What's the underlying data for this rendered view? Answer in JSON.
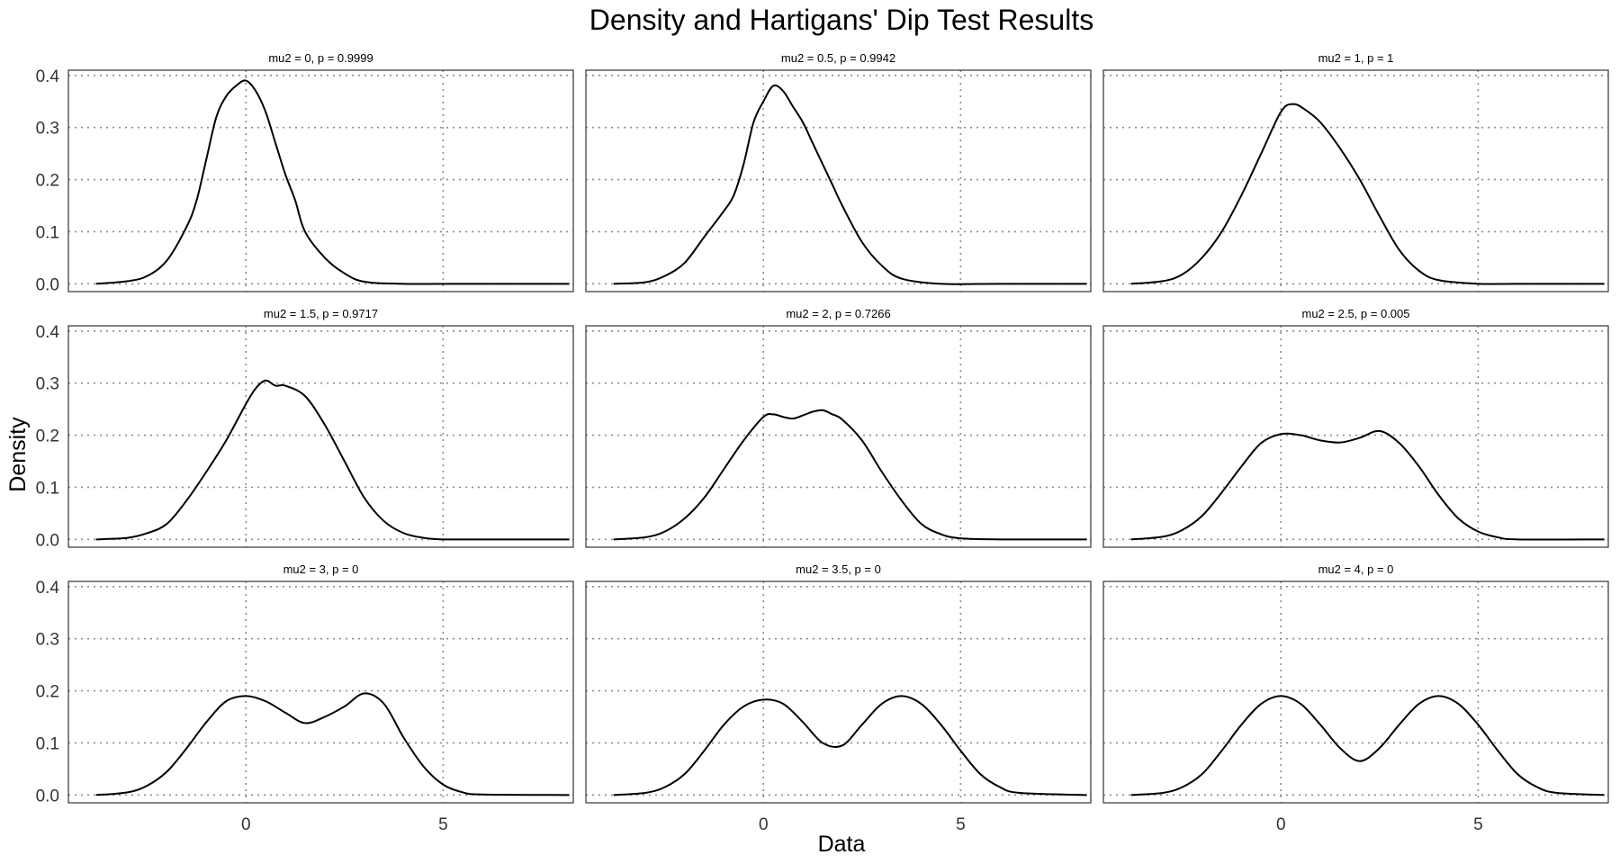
{
  "chart_data": {
    "type": "line",
    "title": "Density and Hartigans' Dip Test Results",
    "xlabel": "Data",
    "ylabel": "Density",
    "xlim": [
      -4.5,
      8.3
    ],
    "ylim": [
      -0.015,
      0.41
    ],
    "x_ticks": [
      0,
      5
    ],
    "y_ticks": [
      0.0,
      0.1,
      0.2,
      0.3,
      0.4
    ],
    "y_tick_labels": [
      "0.0",
      "0.1",
      "0.2",
      "0.3",
      "0.4"
    ],
    "grid": "dotted",
    "line_color": "#000000",
    "panels": [
      {
        "label": "mu2 = 0, p = 0.9999",
        "x": [
          -3.8,
          -3.0,
          -2.5,
          -2.0,
          -1.5,
          -1.25,
          -1.0,
          -0.75,
          -0.5,
          -0.25,
          0,
          0.25,
          0.5,
          0.75,
          1.0,
          1.25,
          1.5,
          2.0,
          2.5,
          3.0,
          4.0,
          6.0,
          8.2
        ],
        "y": [
          0.0,
          0.005,
          0.015,
          0.045,
          0.11,
          0.16,
          0.24,
          0.32,
          0.36,
          0.38,
          0.39,
          0.37,
          0.33,
          0.27,
          0.21,
          0.16,
          0.1,
          0.05,
          0.02,
          0.004,
          0.0,
          0.0,
          0.0
        ]
      },
      {
        "label": "mu2 = 0.5, p = 0.9942",
        "x": [
          -3.8,
          -3.0,
          -2.5,
          -2.0,
          -1.5,
          -1.0,
          -0.75,
          -0.5,
          -0.25,
          0,
          0.25,
          0.5,
          0.75,
          1.0,
          1.25,
          1.5,
          1.75,
          2.0,
          2.5,
          3.0,
          3.5,
          4.5,
          6.0,
          8.2
        ],
        "y": [
          0.0,
          0.003,
          0.015,
          0.04,
          0.09,
          0.14,
          0.17,
          0.23,
          0.31,
          0.35,
          0.38,
          0.37,
          0.34,
          0.31,
          0.27,
          0.23,
          0.19,
          0.15,
          0.08,
          0.035,
          0.01,
          0.0,
          0.0,
          0.0
        ]
      },
      {
        "label": "mu2 = 1, p = 1",
        "x": [
          -3.8,
          -3.0,
          -2.5,
          -2.0,
          -1.5,
          -1.0,
          -0.5,
          0,
          0.3,
          0.6,
          1.0,
          1.5,
          2.0,
          2.5,
          3.0,
          3.5,
          4.0,
          5.0,
          6.0,
          8.2
        ],
        "y": [
          0.0,
          0.005,
          0.018,
          0.05,
          0.1,
          0.17,
          0.25,
          0.33,
          0.345,
          0.335,
          0.31,
          0.26,
          0.2,
          0.13,
          0.065,
          0.025,
          0.007,
          0.0,
          0.0,
          0.0
        ]
      },
      {
        "label": "mu2 = 1.5, p = 0.9717",
        "x": [
          -3.8,
          -3.0,
          -2.5,
          -2.0,
          -1.5,
          -1.0,
          -0.5,
          0,
          0.25,
          0.5,
          0.75,
          1.0,
          1.5,
          2.0,
          2.5,
          3.0,
          3.5,
          4.0,
          4.5,
          5.0,
          6.0,
          8.2
        ],
        "y": [
          0.0,
          0.003,
          0.012,
          0.03,
          0.075,
          0.13,
          0.19,
          0.26,
          0.29,
          0.305,
          0.295,
          0.295,
          0.275,
          0.22,
          0.15,
          0.08,
          0.035,
          0.012,
          0.003,
          0.0,
          0.0,
          0.0
        ]
      },
      {
        "label": "mu2 = 2, p = 0.7266",
        "x": [
          -3.8,
          -3.0,
          -2.5,
          -2.0,
          -1.5,
          -1.0,
          -0.5,
          0,
          0.25,
          0.5,
          0.75,
          1.0,
          1.25,
          1.5,
          1.75,
          2.0,
          2.5,
          3.0,
          3.5,
          4.0,
          4.5,
          5.0,
          6.0,
          8.2
        ],
        "y": [
          0.0,
          0.004,
          0.015,
          0.04,
          0.08,
          0.135,
          0.19,
          0.235,
          0.24,
          0.235,
          0.232,
          0.238,
          0.245,
          0.248,
          0.24,
          0.23,
          0.19,
          0.13,
          0.075,
          0.03,
          0.01,
          0.002,
          0.0,
          0.0
        ]
      },
      {
        "label": "mu2 = 2.5, p = 0.005",
        "x": [
          -3.8,
          -3.0,
          -2.5,
          -2.0,
          -1.5,
          -1.0,
          -0.5,
          0,
          0.5,
          1.0,
          1.5,
          2.0,
          2.5,
          3.0,
          3.5,
          4.0,
          4.5,
          5.0,
          5.5,
          6.0,
          8.2
        ],
        "y": [
          0.0,
          0.005,
          0.018,
          0.045,
          0.09,
          0.14,
          0.185,
          0.202,
          0.2,
          0.19,
          0.186,
          0.195,
          0.208,
          0.185,
          0.14,
          0.085,
          0.04,
          0.015,
          0.004,
          0.0,
          0.0
        ]
      },
      {
        "label": "mu2 = 3, p = 0",
        "x": [
          -3.8,
          -3.0,
          -2.5,
          -2.0,
          -1.5,
          -1.0,
          -0.5,
          0,
          0.5,
          1.0,
          1.5,
          2.0,
          2.5,
          3.0,
          3.5,
          4.0,
          4.5,
          5.0,
          5.5,
          6.0,
          8.2
        ],
        "y": [
          0.0,
          0.005,
          0.018,
          0.045,
          0.09,
          0.14,
          0.18,
          0.19,
          0.18,
          0.158,
          0.138,
          0.15,
          0.17,
          0.195,
          0.175,
          0.11,
          0.055,
          0.02,
          0.005,
          0.001,
          0.0
        ]
      },
      {
        "label": "mu2 = 3.5, p = 0",
        "x": [
          -3.8,
          -3.0,
          -2.5,
          -2.0,
          -1.5,
          -1.0,
          -0.5,
          0,
          0.5,
          1.0,
          1.5,
          2.0,
          2.5,
          3.0,
          3.5,
          4.0,
          4.5,
          5.0,
          5.5,
          6.0,
          6.5,
          8.2
        ],
        "y": [
          0.0,
          0.004,
          0.015,
          0.04,
          0.085,
          0.135,
          0.17,
          0.183,
          0.175,
          0.14,
          0.1,
          0.095,
          0.135,
          0.175,
          0.19,
          0.175,
          0.135,
          0.085,
          0.04,
          0.015,
          0.004,
          0.0
        ]
      },
      {
        "label": "mu2 = 4, p = 0",
        "x": [
          -3.8,
          -3.0,
          -2.5,
          -2.0,
          -1.5,
          -1.0,
          -0.5,
          0,
          0.5,
          1.0,
          1.5,
          2.0,
          2.5,
          3.0,
          3.5,
          4.0,
          4.5,
          5.0,
          5.5,
          6.0,
          6.5,
          7.0,
          8.2
        ],
        "y": [
          0.0,
          0.004,
          0.015,
          0.04,
          0.085,
          0.135,
          0.175,
          0.19,
          0.175,
          0.135,
          0.09,
          0.065,
          0.09,
          0.135,
          0.175,
          0.19,
          0.175,
          0.135,
          0.085,
          0.04,
          0.015,
          0.004,
          0.0
        ]
      }
    ]
  }
}
